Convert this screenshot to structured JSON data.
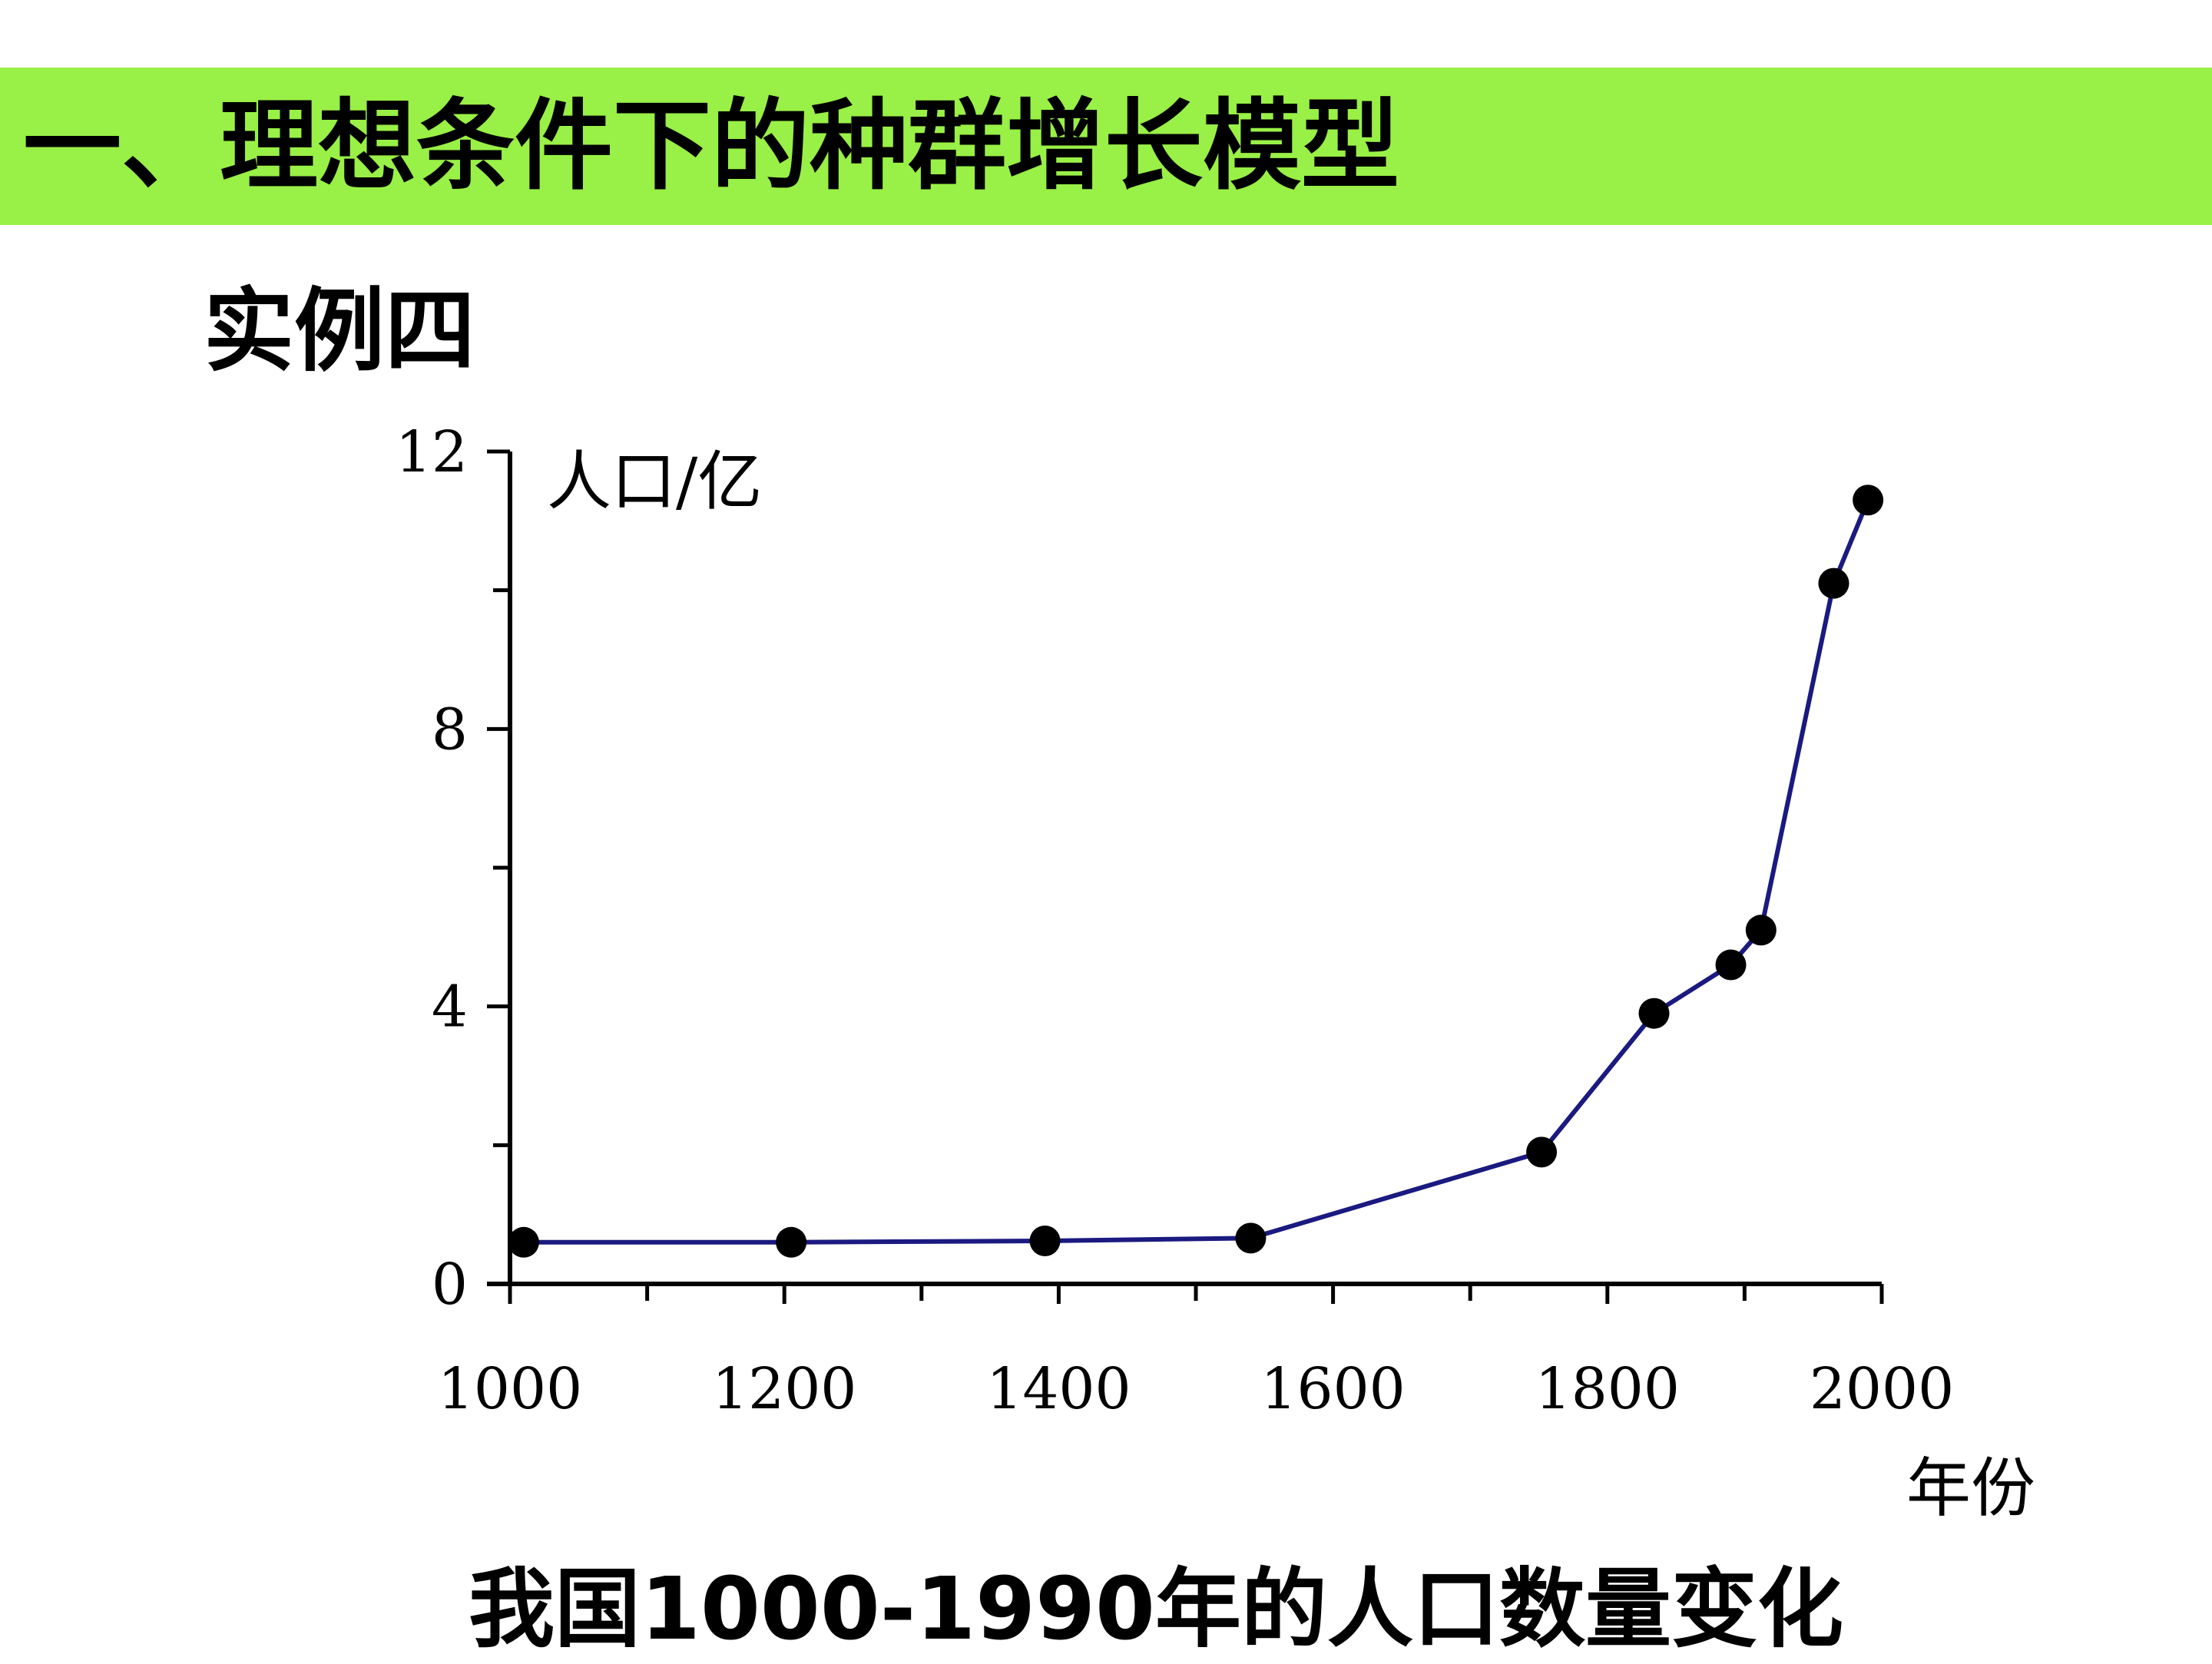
{
  "header": {
    "title": "一、理想条件下的种群增长模型",
    "subtitle": "实例四"
  },
  "colors": {
    "title_bar": "#99f046",
    "line": "#1a1a80",
    "marker": "#000000"
  },
  "chart_data": {
    "type": "line",
    "title": "我国1000-1990年的人口数量变化",
    "xlabel": "年份",
    "ylabel": "人口/亿",
    "xlim": [
      1000,
      2000
    ],
    "ylim": [
      0,
      12
    ],
    "xticks": [
      1000,
      1200,
      1400,
      1600,
      1800,
      2000
    ],
    "yticks": [
      0,
      4,
      8,
      12
    ],
    "series": [
      {
        "x": [
          1010,
          1205,
          1390,
          1540,
          1752,
          1834,
          1890,
          1912,
          1965,
          1990
        ],
        "y": [
          0.6,
          0.6,
          0.62,
          0.66,
          1.9,
          3.9,
          4.6,
          5.1,
          10.1,
          11.3
        ]
      }
    ]
  }
}
